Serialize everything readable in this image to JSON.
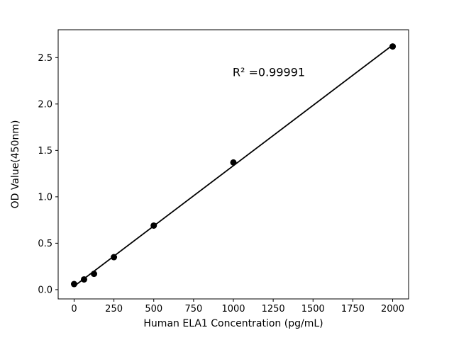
{
  "chart_data": {
    "type": "scatter",
    "xlabel": "Human ELA1 Concentration (pg/mL)",
    "ylabel": "OD Value(450nm)",
    "annotation": "R² =0.99991",
    "annotation_xy": [
      995,
      2.3
    ],
    "x": [
      0,
      62.5,
      125,
      250,
      500,
      1000,
      2000
    ],
    "y": [
      0.06,
      0.11,
      0.17,
      0.35,
      0.69,
      1.37,
      2.62
    ],
    "xticks": [
      0,
      250,
      500,
      750,
      1000,
      1250,
      1500,
      1750,
      2000
    ],
    "yticks": [
      0.0,
      0.5,
      1.0,
      1.5,
      2.0,
      2.5
    ],
    "xlim": [
      -100,
      2100
    ],
    "ylim": [
      -0.1,
      2.8
    ],
    "grid": false,
    "legend": null,
    "marker_color": "#000000",
    "line_color": "#000000",
    "background_color": "#ffffff",
    "spine_color": "#000000"
  }
}
